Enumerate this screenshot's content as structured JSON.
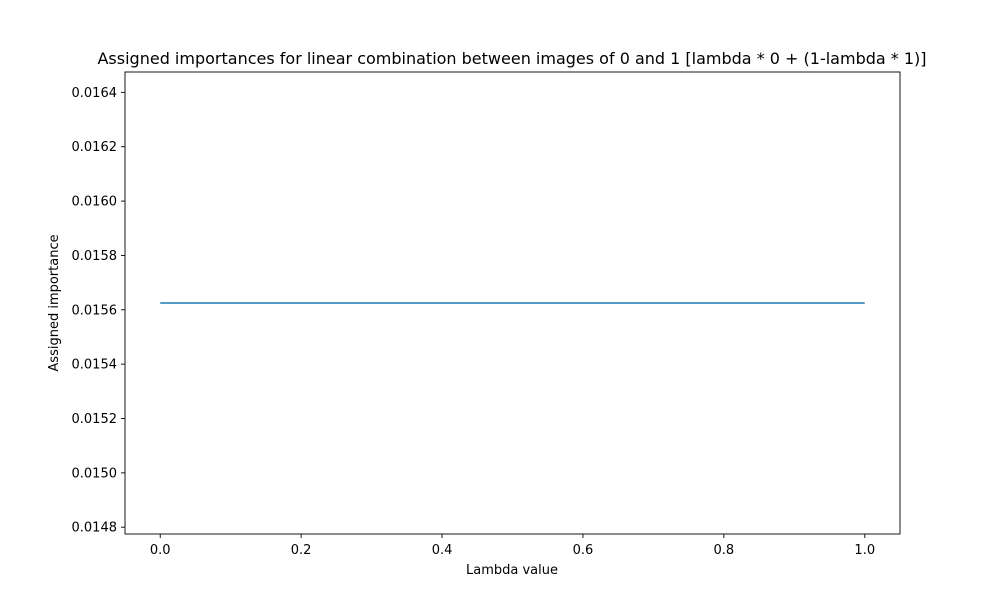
{
  "chart_data": {
    "type": "line",
    "title": "Assigned importances for linear combination between images of 0 and 1 [lambda * 0 + (1-lambda * 1)]",
    "xlabel": "Lambda value",
    "ylabel": "Assigned importance",
    "xlim": [
      -0.05,
      1.05
    ],
    "ylim": [
      0.014775,
      0.016475
    ],
    "xticks": [
      0.0,
      0.2,
      0.4,
      0.6,
      0.8,
      1.0
    ],
    "xtick_labels": [
      "0.0",
      "0.2",
      "0.4",
      "0.6",
      "0.8",
      "1.0"
    ],
    "yticks": [
      0.0148,
      0.015,
      0.0152,
      0.0154,
      0.0156,
      0.0158,
      0.016,
      0.0162,
      0.0164
    ],
    "ytick_labels": [
      "0.0148",
      "0.0150",
      "0.0152",
      "0.0154",
      "0.0156",
      "0.0158",
      "0.0160",
      "0.0162",
      "0.0164"
    ],
    "grid": false,
    "series": [
      {
        "color": "#1f77b4",
        "x": [
          0.0,
          1.0
        ],
        "y": [
          0.015625,
          0.015625
        ]
      }
    ]
  }
}
